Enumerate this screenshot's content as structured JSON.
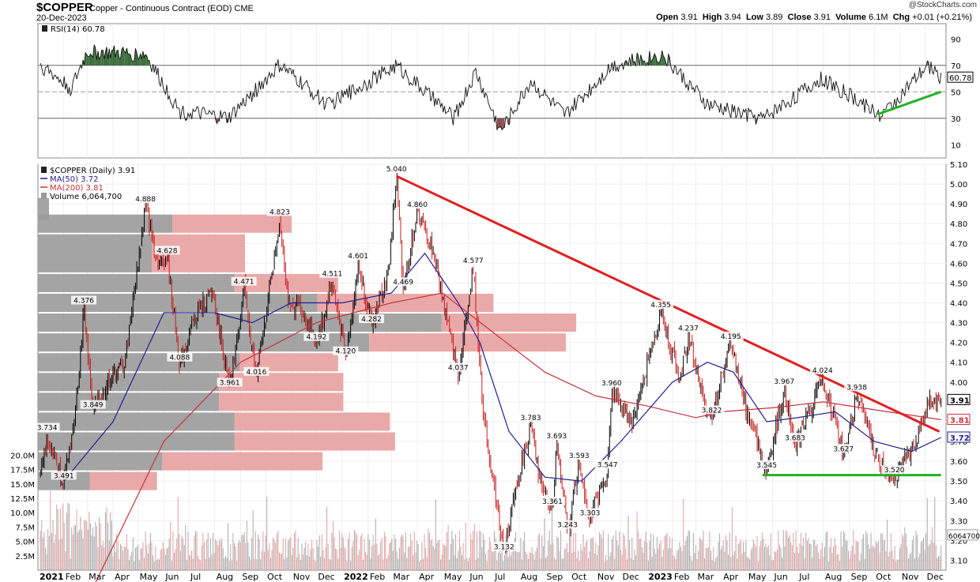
{
  "header": {
    "symbol": "$COPPER",
    "description": "Copper - Continuous Contract (EOD)",
    "exchange": "CME",
    "date": "20-Dec-2023",
    "copyright": "@StockCharts.com",
    "open_label": "Open",
    "open": "3.91",
    "high_label": "High",
    "high": "3.94",
    "low_label": "Low",
    "low": "3.89",
    "close_label": "Close",
    "close": "3.91",
    "volume_label": "Volume",
    "volume": "6.1M",
    "chg_label": "Chg",
    "chg": "+0.01 (+0.21%)"
  },
  "rsi_panel": {
    "legend": "RSI(14) 60.78",
    "ticks": [
      90,
      70,
      50,
      30,
      10
    ],
    "upper_band": 70,
    "lower_band": 30,
    "midline": 50,
    "current_tag": "60.78"
  },
  "price_panel": {
    "legend": [
      {
        "text": "$COPPER (Daily) 3.91",
        "color": "#000000",
        "marker": "candle"
      },
      {
        "text": "MA(50) 3.72",
        "color": "#1f1f8f",
        "marker": "line"
      },
      {
        "text": "MA(200) 3.81",
        "color": "#c8323c",
        "marker": "line"
      },
      {
        "text": "Volume 6,064,700",
        "color": "#999999",
        "marker": "box"
      }
    ],
    "price_ticks": [
      "5.10",
      "5.00",
      "4.90",
      "4.80",
      "4.70",
      "4.60",
      "4.50",
      "4.40",
      "4.30",
      "4.20",
      "4.10",
      "4.00",
      "3.90",
      "3.80",
      "3.70",
      "3.60",
      "3.50",
      "3.40",
      "3.30",
      "3.20",
      "3.10"
    ],
    "volume_ticks": [
      "20.0M",
      "17.5M",
      "15.0M",
      "12.5M",
      "10.0M",
      "7.5M",
      "5.0M",
      "2.5M"
    ],
    "tags": {
      "close": "3.91",
      "ma200": "3.81",
      "ma50": "3.72",
      "volume": "6064700"
    },
    "colors": {
      "candle": "#000000",
      "ma50": "#1f1f8f",
      "ma200": "#c8323c",
      "trendline": "#e02020",
      "support": "#22b022",
      "vbp_down": "#9a9a9a",
      "vbp_up": "#e8a0a0"
    }
  },
  "x_axis": [
    "2021",
    "Feb",
    "Mar",
    "Apr",
    "May",
    "Jun",
    "Jul",
    "Aug",
    "Sep",
    "Oct",
    "Nov",
    "Dec",
    "2022",
    "Feb",
    "Mar",
    "Apr",
    "May",
    "Jun",
    "Jul",
    "Aug",
    "Sep",
    "Oct",
    "Nov",
    "Dec",
    "2023",
    "Feb",
    "Mar",
    "Apr",
    "May",
    "Jun",
    "Jul",
    "Aug",
    "Sep",
    "Oct",
    "Nov",
    "Dec"
  ],
  "chart_data": {
    "type": "line",
    "title": "$COPPER Copper - Continuous Contract (EOD)",
    "x_unit": "month",
    "x_range": [
      "2021-01",
      "2023-12-20"
    ],
    "ylim": [
      3.05,
      5.1
    ],
    "series": [
      {
        "name": "$COPPER (Daily)",
        "points": [
          [
            "2021-01-04",
            3.55
          ],
          [
            "2021-01-12",
            3.73
          ],
          [
            "2021-02-01",
            3.49
          ],
          [
            "2021-02-15",
            3.85
          ],
          [
            "2021-02-25",
            4.376
          ],
          [
            "2021-03-08",
            3.849
          ],
          [
            "2021-03-25",
            4.0
          ],
          [
            "2021-04-15",
            4.1
          ],
          [
            "2021-05-10",
            4.888
          ],
          [
            "2021-05-25",
            4.6
          ],
          [
            "2021-06-05",
            4.628
          ],
          [
            "2021-06-20",
            4.088
          ],
          [
            "2021-07-10",
            4.35
          ],
          [
            "2021-07-30",
            4.45
          ],
          [
            "2021-08-19",
            3.961
          ],
          [
            "2021-09-05",
            4.471
          ],
          [
            "2021-09-20",
            4.016
          ],
          [
            "2021-10-18",
            4.823
          ],
          [
            "2021-10-30",
            4.35
          ],
          [
            "2021-11-10",
            4.4
          ],
          [
            "2021-12-01",
            4.192
          ],
          [
            "2021-12-20",
            4.511
          ],
          [
            "2022-01-05",
            4.12
          ],
          [
            "2022-01-20",
            4.601
          ],
          [
            "2022-02-05",
            4.282
          ],
          [
            "2022-02-25",
            4.55
          ],
          [
            "2022-03-07",
            5.04
          ],
          [
            "2022-03-15",
            4.469
          ],
          [
            "2022-04-01",
            4.86
          ],
          [
            "2022-04-20",
            4.65
          ],
          [
            "2022-05-10",
            4.25
          ],
          [
            "2022-05-20",
            4.037
          ],
          [
            "2022-06-07",
            4.577
          ],
          [
            "2022-06-20",
            3.8
          ],
          [
            "2022-07-14",
            3.132
          ],
          [
            "2022-07-28",
            3.45
          ],
          [
            "2022-08-15",
            3.783
          ],
          [
            "2022-08-25",
            3.52
          ],
          [
            "2022-09-10",
            3.361
          ],
          [
            "2022-09-15",
            3.693
          ],
          [
            "2022-09-28",
            3.243
          ],
          [
            "2022-10-12",
            3.593
          ],
          [
            "2022-10-25",
            3.303
          ],
          [
            "2022-11-15",
            3.547
          ],
          [
            "2022-11-20",
            3.96
          ],
          [
            "2022-12-15",
            3.8
          ],
          [
            "2023-01-18",
            4.355
          ],
          [
            "2023-02-10",
            4.0
          ],
          [
            "2023-02-20",
            4.237
          ],
          [
            "2023-03-10",
            3.9
          ],
          [
            "2023-03-20",
            3.822
          ],
          [
            "2023-04-12",
            4.195
          ],
          [
            "2023-05-01",
            3.85
          ],
          [
            "2023-05-25",
            3.545
          ],
          [
            "2023-06-15",
            3.967
          ],
          [
            "2023-06-28",
            3.683
          ],
          [
            "2023-07-31",
            4.024
          ],
          [
            "2023-08-25",
            3.627
          ],
          [
            "2023-09-10",
            3.938
          ],
          [
            "2023-10-05",
            3.6
          ],
          [
            "2023-10-25",
            3.52
          ],
          [
            "2023-11-20",
            3.7
          ],
          [
            "2023-12-05",
            3.9
          ],
          [
            "2023-12-20",
            3.91
          ]
        ]
      },
      {
        "name": "MA(50)",
        "points": [
          [
            "2021-02-01",
            3.5
          ],
          [
            "2021-04-01",
            3.8
          ],
          [
            "2021-06-01",
            4.35
          ],
          [
            "2021-08-01",
            4.35
          ],
          [
            "2021-09-15",
            4.3
          ],
          [
            "2021-11-01",
            4.4
          ],
          [
            "2022-01-01",
            4.4
          ],
          [
            "2022-03-01",
            4.45
          ],
          [
            "2022-04-10",
            4.65
          ],
          [
            "2022-05-20",
            4.4
          ],
          [
            "2022-06-15",
            4.2
          ],
          [
            "2022-07-20",
            3.75
          ],
          [
            "2022-09-01",
            3.52
          ],
          [
            "2022-10-15",
            3.5
          ],
          [
            "2022-12-01",
            3.7
          ],
          [
            "2023-02-01",
            4.0
          ],
          [
            "2023-03-15",
            4.1
          ],
          [
            "2023-04-15",
            4.05
          ],
          [
            "2023-05-25",
            3.8
          ],
          [
            "2023-07-01",
            3.82
          ],
          [
            "2023-08-15",
            3.85
          ],
          [
            "2023-10-01",
            3.7
          ],
          [
            "2023-11-15",
            3.65
          ],
          [
            "2023-12-20",
            3.72
          ]
        ]
      },
      {
        "name": "MA(200)",
        "points": [
          [
            "2021-03-01",
            2.9
          ],
          [
            "2021-06-01",
            3.7
          ],
          [
            "2021-09-01",
            4.1
          ],
          [
            "2021-12-01",
            4.3
          ],
          [
            "2022-03-01",
            4.4
          ],
          [
            "2022-05-01",
            4.45
          ],
          [
            "2022-07-01",
            4.25
          ],
          [
            "2022-09-01",
            4.05
          ],
          [
            "2022-11-01",
            3.93
          ],
          [
            "2023-01-01",
            3.88
          ],
          [
            "2023-03-01",
            3.82
          ],
          [
            "2023-04-01",
            3.85
          ],
          [
            "2023-06-01",
            3.87
          ],
          [
            "2023-08-01",
            3.9
          ],
          [
            "2023-10-01",
            3.86
          ],
          [
            "2023-12-20",
            3.81
          ]
        ]
      },
      {
        "name": "RSI(14)",
        "points": [
          [
            "2021-01-05",
            70
          ],
          [
            "2021-02-10",
            52
          ],
          [
            "2021-03-01",
            80
          ],
          [
            "2021-05-10",
            78
          ],
          [
            "2021-06-20",
            35
          ],
          [
            "2021-08-18",
            30
          ],
          [
            "2021-10-18",
            70
          ],
          [
            "2021-12-15",
            40
          ],
          [
            "2022-03-07",
            70
          ],
          [
            "2022-05-15",
            30
          ],
          [
            "2022-06-10",
            65
          ],
          [
            "2022-07-10",
            20
          ],
          [
            "2022-08-15",
            58
          ],
          [
            "2022-09-25",
            32
          ],
          [
            "2022-11-20",
            70
          ],
          [
            "2023-01-20",
            78
          ],
          [
            "2023-03-15",
            40
          ],
          [
            "2023-05-20",
            30
          ],
          [
            "2023-07-30",
            60
          ],
          [
            "2023-10-10",
            32
          ],
          [
            "2023-12-05",
            70
          ],
          [
            "2023-12-20",
            60.78
          ]
        ]
      },
      {
        "name": "Trendline",
        "points": [
          [
            "2022-03-07",
            5.04
          ],
          [
            "2023-12-18",
            3.75
          ]
        ]
      },
      {
        "name": "Support",
        "points": [
          [
            "2023-05-20",
            3.53
          ],
          [
            "2023-12-20",
            3.53
          ]
        ]
      }
    ],
    "annotations": [
      {
        "x": "2021-01-12",
        "value": "3.734"
      },
      {
        "x": "2021-02-01",
        "value": "3.491"
      },
      {
        "x": "2021-02-25",
        "value": "4.376"
      },
      {
        "x": "2021-03-08",
        "value": "3.849"
      },
      {
        "x": "2021-05-10",
        "value": "4.888"
      },
      {
        "x": "2021-06-05",
        "value": "4.628"
      },
      {
        "x": "2021-06-20",
        "value": "4.088"
      },
      {
        "x": "2021-08-19",
        "value": "3.961"
      },
      {
        "x": "2021-09-05",
        "value": "4.471"
      },
      {
        "x": "2021-09-20",
        "value": "4.016"
      },
      {
        "x": "2021-10-18",
        "value": "4.823"
      },
      {
        "x": "2021-12-01",
        "value": "4.192"
      },
      {
        "x": "2021-12-20",
        "value": "4.511"
      },
      {
        "x": "2022-01-05",
        "value": "4.120"
      },
      {
        "x": "2022-01-20",
        "value": "4.601"
      },
      {
        "x": "2022-02-05",
        "value": "4.282"
      },
      {
        "x": "2022-03-07",
        "value": "5.040"
      },
      {
        "x": "2022-03-15",
        "value": "4.469"
      },
      {
        "x": "2022-04-01",
        "value": "4.860"
      },
      {
        "x": "2022-05-20",
        "value": "4.037"
      },
      {
        "x": "2022-06-07",
        "value": "4.577"
      },
      {
        "x": "2022-07-14",
        "value": "3.132"
      },
      {
        "x": "2022-08-15",
        "value": "3.783"
      },
      {
        "x": "2022-09-10",
        "value": "3.361"
      },
      {
        "x": "2022-09-15",
        "value": "3.693"
      },
      {
        "x": "2022-09-28",
        "value": "3.243"
      },
      {
        "x": "2022-10-12",
        "value": "3.593"
      },
      {
        "x": "2022-10-25",
        "value": "3.303"
      },
      {
        "x": "2022-11-15",
        "value": "3.547"
      },
      {
        "x": "2022-11-20",
        "value": "3.960"
      },
      {
        "x": "2023-01-18",
        "value": "4.355"
      },
      {
        "x": "2023-02-20",
        "value": "4.237"
      },
      {
        "x": "2023-03-20",
        "value": "3.822"
      },
      {
        "x": "2023-04-12",
        "value": "4.195"
      },
      {
        "x": "2023-05-25",
        "value": "3.545"
      },
      {
        "x": "2023-06-15",
        "value": "3.967"
      },
      {
        "x": "2023-06-28",
        "value": "3.683"
      },
      {
        "x": "2023-07-31",
        "value": "4.024"
      },
      {
        "x": "2023-08-25",
        "value": "3.627"
      },
      {
        "x": "2023-09-10",
        "value": "3.938"
      },
      {
        "x": "2023-10-25",
        "value": "3.520"
      }
    ],
    "volume_by_price": [
      {
        "price_from": 4.75,
        "price_to": 4.85,
        "down": 26,
        "up": 23
      },
      {
        "price_from": 4.55,
        "price_to": 4.75,
        "down": 22,
        "up": 18
      },
      {
        "price_from": 4.45,
        "price_to": 4.55,
        "down": 38,
        "up": 20
      },
      {
        "price_from": 4.35,
        "price_to": 4.45,
        "down": 54,
        "up": 34
      },
      {
        "price_from": 4.25,
        "price_to": 4.35,
        "down": 78,
        "up": 26
      },
      {
        "price_from": 4.15,
        "price_to": 4.25,
        "down": 64,
        "up": 38
      },
      {
        "price_from": 4.05,
        "price_to": 4.15,
        "down": 39,
        "up": 19
      },
      {
        "price_from": 3.95,
        "price_to": 4.05,
        "down": 35,
        "up": 24
      },
      {
        "price_from": 3.85,
        "price_to": 3.95,
        "down": 35,
        "up": 24
      },
      {
        "price_from": 3.75,
        "price_to": 3.85,
        "down": 38,
        "up": 30
      },
      {
        "price_from": 3.65,
        "price_to": 3.75,
        "down": 38,
        "up": 31
      },
      {
        "price_from": 3.55,
        "price_to": 3.65,
        "down": 24,
        "up": 31
      },
      {
        "price_from": 3.45,
        "price_to": 3.55,
        "down": 10,
        "up": 13
      }
    ],
    "volume": {
      "ylim_millions": [
        0,
        25
      ],
      "current": 6064700
    }
  }
}
